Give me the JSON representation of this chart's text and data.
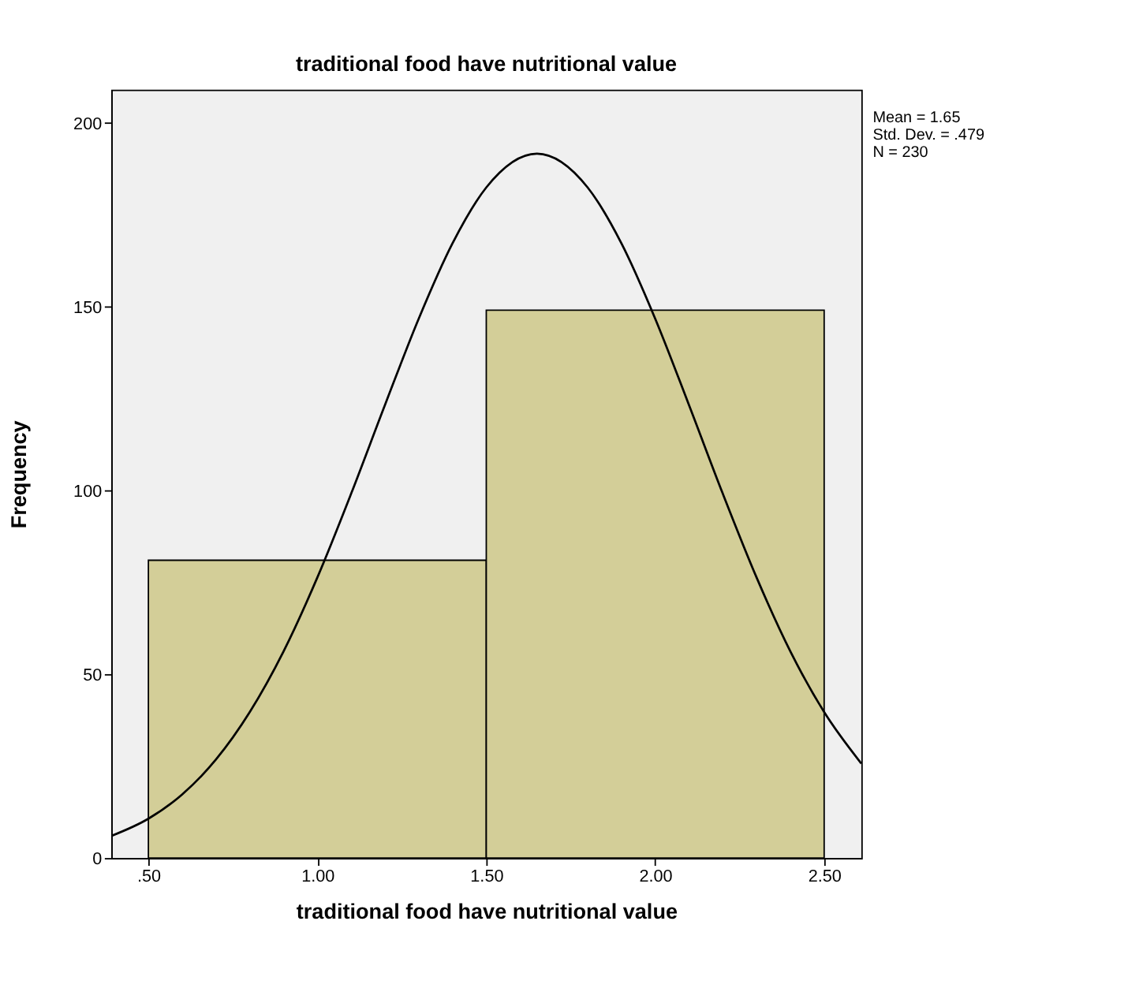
{
  "chart_data": {
    "type": "histogram",
    "title": "traditional food have nutritional value",
    "xlabel": "traditional food have nutritional value",
    "ylabel": "Frequency",
    "bins": [
      0.5,
      1.5,
      2.5
    ],
    "values": [
      81,
      149
    ],
    "color": "#d3ce98",
    "series": [
      {
        "type": "line",
        "color": "#000000",
        "x": [
          0.39,
          0.5,
          0.6,
          0.7,
          0.8,
          0.9,
          1.0,
          1.1,
          1.2,
          1.3,
          1.4,
          1.5,
          1.65,
          1.8,
          1.9,
          2.0,
          2.1,
          2.2,
          2.3,
          2.4,
          2.5,
          2.61
        ],
        "values": [
          6.0,
          10.7,
          17.3,
          26.8,
          39.7,
          56.2,
          76.3,
          99.1,
          123.2,
          146.7,
          167.2,
          182.4,
          191.6,
          182.4,
          167.2,
          146.7,
          123.2,
          99.1,
          76.3,
          56.2,
          39.7,
          25.7
        ]
      }
    ],
    "xlim": [
      0.39,
      2.61
    ],
    "xticks": [
      {
        "value": 0.5,
        "label": ".50"
      },
      {
        "value": 1.0,
        "label": "1.00"
      },
      {
        "value": 1.5,
        "label": "1.50"
      },
      {
        "value": 2.0,
        "label": "2.00"
      },
      {
        "value": 2.5,
        "label": "2.50"
      }
    ],
    "ylim": [
      0,
      209
    ],
    "yticks": [
      0,
      50,
      100,
      150,
      200
    ],
    "grid": false,
    "annotations": [
      "Mean = 1.65",
      "Std. Dev. = .479",
      "N = 230"
    ]
  }
}
